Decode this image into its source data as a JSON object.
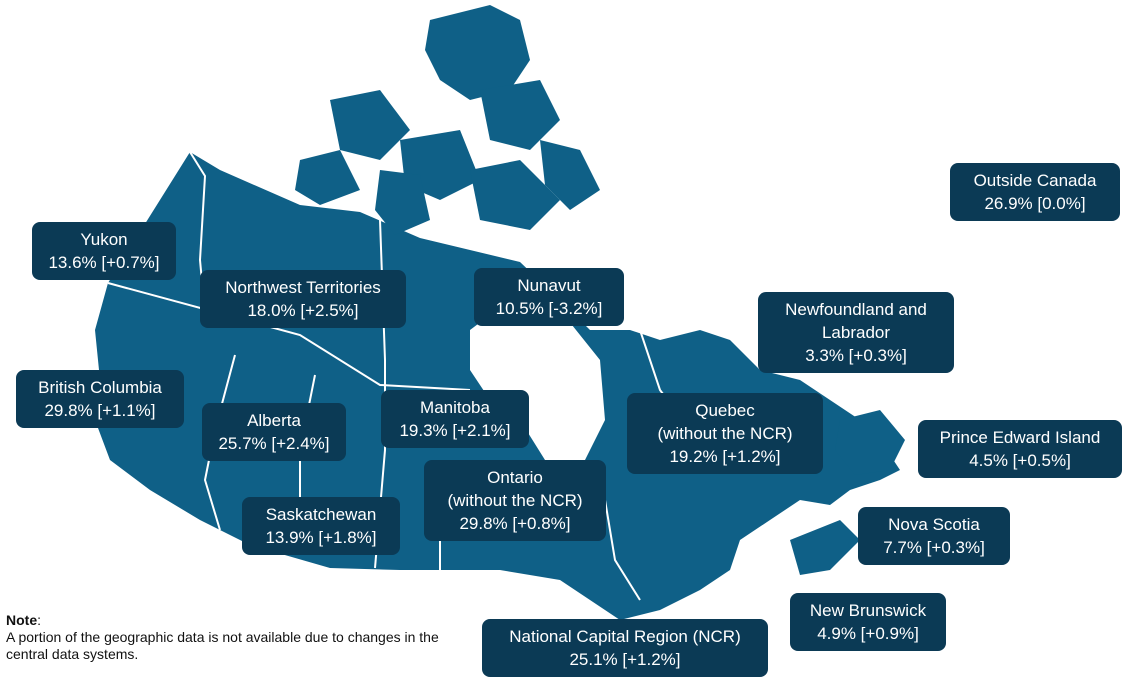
{
  "colors": {
    "land": "#0f6087",
    "label_bg": "#0b3a55",
    "label_text": "#ffffff",
    "border": "#ffffff"
  },
  "regions": {
    "yukon": {
      "name": "Yukon",
      "value": "13.6% [+0.7%]"
    },
    "nwt": {
      "name": "Northwest Territories",
      "value": "18.0% [+2.5%]"
    },
    "nunavut": {
      "name": "Nunavut",
      "value": "10.5% [-3.2%]"
    },
    "outside": {
      "name": "Outside Canada",
      "value": "26.9% [0.0%]"
    },
    "nl": {
      "name1": "Newfoundland and",
      "name2": "Labrador",
      "value": "3.3% [+0.3%]"
    },
    "bc": {
      "name": "British Columbia",
      "value": "29.8% [+1.1%]"
    },
    "alberta": {
      "name": "Alberta",
      "value": "25.7% [+2.4%]"
    },
    "manitoba": {
      "name": "Manitoba",
      "value": "19.3% [+2.1%]"
    },
    "quebec": {
      "name1": "Quebec",
      "name2": "(without the NCR)",
      "value": "19.2% [+1.2%]"
    },
    "pei": {
      "name": "Prince Edward Island",
      "value": "4.5% [+0.5%]"
    },
    "ontario": {
      "name1": "Ontario",
      "name2": "(without the NCR)",
      "value": "29.8% [+0.8%]"
    },
    "saskatchewan": {
      "name": "Saskatchewan",
      "value": "13.9% [+1.8%]"
    },
    "nova_scotia": {
      "name": "Nova Scotia",
      "value": "7.7% [+0.3%]"
    },
    "new_brunswick": {
      "name": "New Brunswick",
      "value": "4.9% [+0.9%]"
    },
    "ncr": {
      "name": "National Capital Region (NCR)",
      "value": "25.1% [+1.2%]"
    }
  },
  "note": {
    "heading": "Note",
    "colon": ":",
    "text": "A portion of the geographic data is not available due to changes in the central data systems."
  }
}
